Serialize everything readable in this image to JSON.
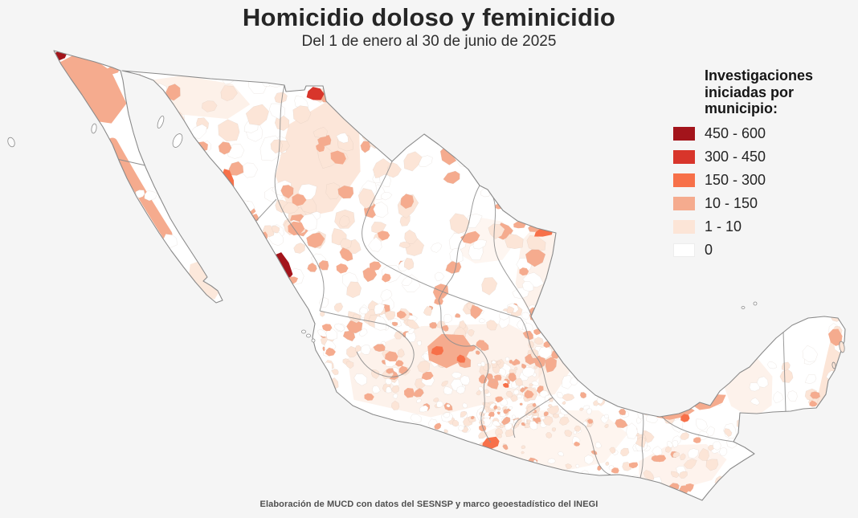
{
  "title": "Homicidio doloso y feminicidio",
  "subtitle": "Del 1 de enero al 30 de junio de 2025",
  "legend": {
    "title": "Investigaciones iniciadas por municipio:",
    "items": [
      {
        "label": "450 - 600",
        "color": "#a3141b"
      },
      {
        "label": "300 - 450",
        "color": "#d8352b"
      },
      {
        "label": "150 - 300",
        "color": "#f77049"
      },
      {
        "label": "10 - 150",
        "color": "#f5ab8e"
      },
      {
        "label": "1 - 10",
        "color": "#fce5d7"
      },
      {
        "label": "0",
        "color": "#ffffff"
      }
    ]
  },
  "map": {
    "background": "#f5f5f5",
    "land_fill": "#ffffff",
    "coast_color": "#8a8a8a",
    "state_border_color": "#8f8f8f",
    "muni_border_color": "#cbb9ae"
  },
  "footer": {
    "source": "Elaboración de MUCD con datos del SESNSP y marco geoestadístico del INEGI"
  },
  "chart_data": {
    "type": "choropleth",
    "region": "México (municipios)",
    "title": "Homicidio doloso y feminicidio",
    "subtitle": "Del 1 de enero al 30 de junio de 2025",
    "legend_title": "Investigaciones iniciadas por municipio:",
    "classes": [
      {
        "range": "450 - 600",
        "color": "#a3141b"
      },
      {
        "range": "300 - 450",
        "color": "#d8352b"
      },
      {
        "range": "150 - 300",
        "color": "#f77049"
      },
      {
        "range": "10 - 150",
        "color": "#f5ab8e"
      },
      {
        "range": "1 - 10",
        "color": "#fce5d7"
      },
      {
        "range": "0",
        "color": "#ffffff"
      }
    ],
    "source": "Elaboración de MUCD con datos del SESNSP y marco geoestadístico del INEGI"
  }
}
